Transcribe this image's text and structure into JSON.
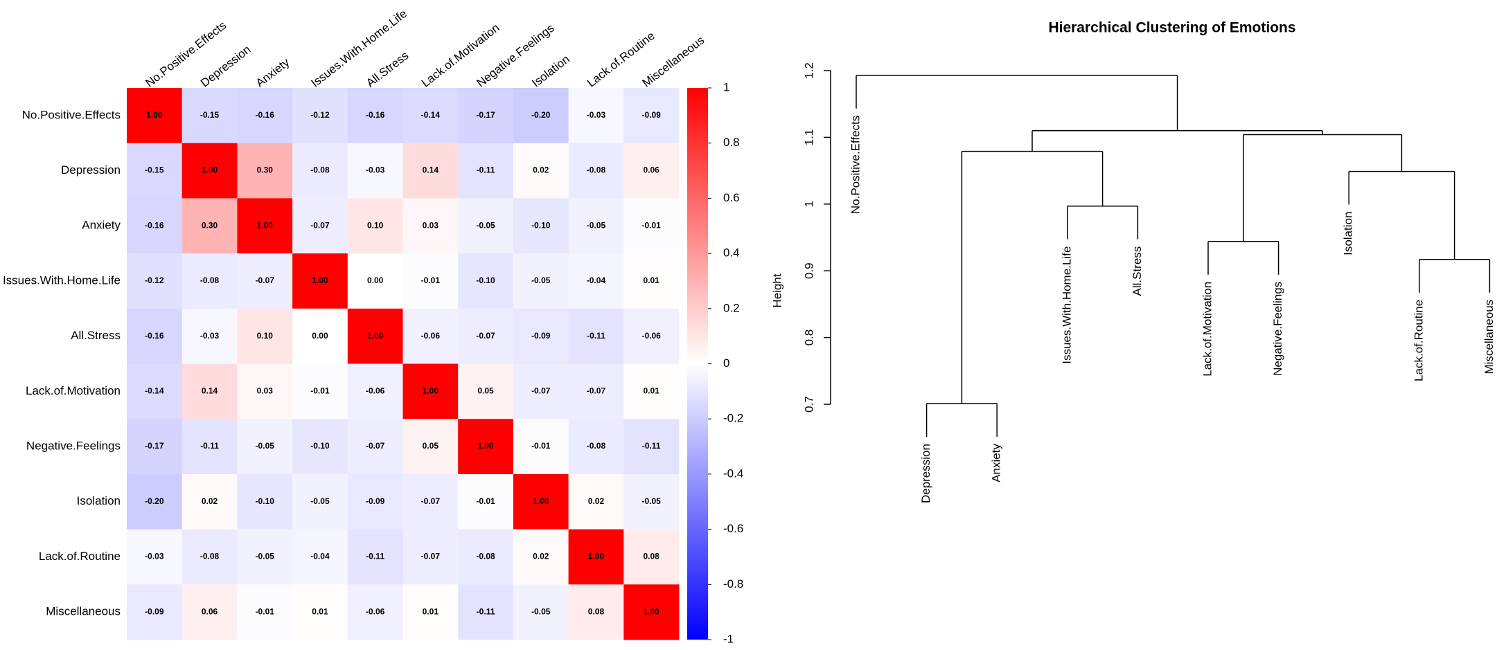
{
  "chart_data": [
    {
      "type": "heatmap",
      "rows": [
        "No.Positive.Effects",
        "Depression",
        "Anxiety",
        "Issues.With.Home.Life",
        "All.Stress",
        "Lack.of.Motivation",
        "Negative.Feelings",
        "Isolation",
        "Lack.of.Routine",
        "Miscellaneous"
      ],
      "columns": [
        "No.Positive.Effects",
        "Depression",
        "Anxiety",
        "Issues.With.Home.Life",
        "All.Stress",
        "Lack.of.Motivation",
        "Negative.Feelings",
        "Isolation",
        "Lack.of.Routine",
        "Miscellaneous"
      ],
      "values": [
        [
          1,
          -0.15,
          -0.16,
          -0.12,
          -0.16,
          -0.14,
          -0.17,
          -0.2,
          -0.03,
          -0.09
        ],
        [
          -0.15,
          1,
          0.3,
          -0.08,
          -0.03,
          0.14,
          -0.11,
          0.02,
          -0.08,
          0.06
        ],
        [
          -0.16,
          0.3,
          1,
          -0.07,
          0.1,
          0.03,
          -0.05,
          -0.1,
          -0.05,
          -0.01
        ],
        [
          -0.12,
          -0.08,
          -0.07,
          1,
          0,
          -0.01,
          -0.1,
          -0.05,
          -0.04,
          0.01
        ],
        [
          -0.16,
          -0.03,
          0.1,
          0,
          1,
          -0.06,
          -0.07,
          -0.09,
          -0.11,
          -0.06
        ],
        [
          -0.14,
          0.14,
          0.03,
          -0.01,
          -0.06,
          1,
          0.05,
          -0.07,
          -0.07,
          0.01
        ],
        [
          -0.17,
          -0.11,
          -0.05,
          -0.1,
          -0.07,
          0.05,
          1,
          -0.01,
          -0.08,
          -0.11
        ],
        [
          -0.2,
          0.02,
          -0.1,
          -0.05,
          -0.09,
          -0.07,
          -0.01,
          1,
          0.02,
          -0.05
        ],
        [
          -0.03,
          -0.08,
          -0.05,
          -0.04,
          -0.11,
          -0.07,
          -0.08,
          0.02,
          1,
          0.08
        ],
        [
          -0.09,
          0.06,
          -0.01,
          0.01,
          -0.06,
          0.01,
          -0.11,
          -0.05,
          0.08,
          1
        ]
      ],
      "value_labels": [
        [
          "1.00",
          "-0.15",
          "-0.16",
          "-0.12",
          "-0.16",
          "-0.14",
          "-0.17",
          "-0.20",
          "-0.03",
          "-0.09"
        ],
        [
          "-0.15",
          "1.00",
          "0.30",
          "-0.08",
          "-0.03",
          "0.14",
          "-0.11",
          "0.02",
          "-0.08",
          "0.06"
        ],
        [
          "-0.16",
          "0.30",
          "1.00",
          "-0.07",
          "0.10",
          "0.03",
          "-0.05",
          "-0.10",
          "-0.05",
          "-0.01"
        ],
        [
          "-0.12",
          "-0.08",
          "-0.07",
          "1.00",
          "0.00",
          "-0.01",
          "-0.10",
          "-0.05",
          "-0.04",
          "0.01"
        ],
        [
          "-0.16",
          "-0.03",
          "0.10",
          "0.00",
          "1.00",
          "-0.06",
          "-0.07",
          "-0.09",
          "-0.11",
          "-0.06"
        ],
        [
          "-0.14",
          "0.14",
          "0.03",
          "-0.01",
          "-0.06",
          "1.00",
          "0.05",
          "-0.07",
          "-0.07",
          "0.01"
        ],
        [
          "-0.17",
          "-0.11",
          "-0.05",
          "-0.10",
          "-0.07",
          "0.05",
          "1.00",
          "-0.01",
          "-0.08",
          "-0.11"
        ],
        [
          "-0.20",
          "0.02",
          "-0.10",
          "-0.05",
          "-0.09",
          "-0.07",
          "-0.01",
          "1.00",
          "0.02",
          "-0.05"
        ],
        [
          "-0.03",
          "-0.08",
          "-0.05",
          "-0.04",
          "-0.11",
          "-0.07",
          "-0.08",
          "0.02",
          "1.00",
          "0.08"
        ],
        [
          "-0.09",
          "0.06",
          "-0.01",
          "0.01",
          "-0.06",
          "0.01",
          "-0.11",
          "-0.05",
          "0.08",
          "1.00"
        ]
      ],
      "colors": [
        "#0000ff",
        "#ffffff",
        "#ff0000"
      ],
      "clim": [
        -1,
        1
      ],
      "cticks": [
        1,
        0.8,
        0.6,
        0.4,
        0.2,
        0,
        -0.2,
        -0.4,
        -0.6,
        -0.8,
        -1
      ]
    },
    {
      "type": "dendrogram",
      "title": "Hierarchical Clustering of Emotions",
      "ylabel": "Height",
      "leaves": [
        "No.Positive.Effects",
        "Depression",
        "Anxiety",
        "Issues.With.Home.Life",
        "All.Stress",
        "Lack.of.Motivation",
        "Negative.Feelings",
        "Isolation",
        "Lack.of.Routine",
        "Miscellaneous"
      ],
      "merge": [
        [
          1,
          2
        ],
        [
          3,
          4
        ],
        [
          5,
          6
        ],
        [
          8,
          9
        ],
        [
          7,
          13
        ],
        [
          10,
          11
        ],
        [
          12,
          14
        ],
        [
          15,
          16
        ],
        [
          0,
          17
        ]
      ],
      "height": [
        0.701,
        0.997,
        0.944,
        0.917,
        1.049,
        1.079,
        1.104,
        1.11,
        1.193
      ],
      "ylim": [
        0.7,
        1.2
      ],
      "yticks": [
        0.7,
        0.8,
        0.9,
        1.0,
        1.1,
        1.2
      ]
    }
  ]
}
